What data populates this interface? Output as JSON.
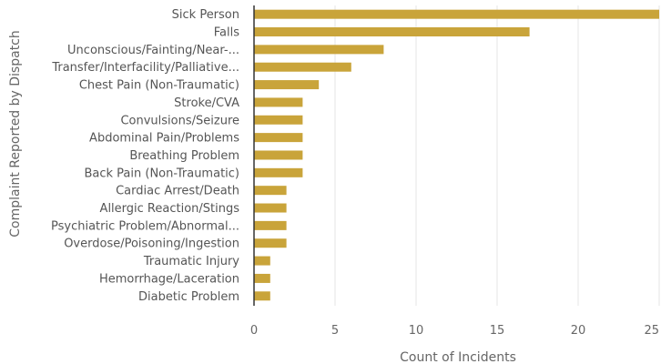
{
  "chart_data": {
    "type": "bar",
    "orientation": "horizontal",
    "categories": [
      "Sick Person",
      "Falls",
      "Unconscious/Fainting/Near-...",
      "Transfer/Interfacility/Palliative...",
      "Chest Pain (Non-Traumatic)",
      "Stroke/CVA",
      "Convulsions/Seizure",
      "Abdominal Pain/Problems",
      "Breathing Problem",
      "Back Pain (Non-Traumatic)",
      "Cardiac Arrest/Death",
      "Allergic Reaction/Stings",
      "Psychiatric Problem/Abnormal...",
      "Overdose/Poisoning/Ingestion",
      "Traumatic Injury",
      "Hemorrhage/Laceration",
      "Diabetic Problem"
    ],
    "values": [
      25,
      17,
      8,
      6,
      4,
      3,
      3,
      3,
      3,
      3,
      2,
      2,
      2,
      2,
      1,
      1,
      1
    ],
    "xlabel": "Count of Incidents",
    "ylabel": "Complaint Reported by Dispatch",
    "xlim": [
      0,
      25
    ],
    "xticks": [
      0,
      5,
      10,
      15,
      20,
      25
    ],
    "grid": true,
    "legend": "none",
    "colors": {
      "bar": "#c9a43a",
      "grid": "#e6e6e6",
      "axis": "#333333"
    }
  }
}
